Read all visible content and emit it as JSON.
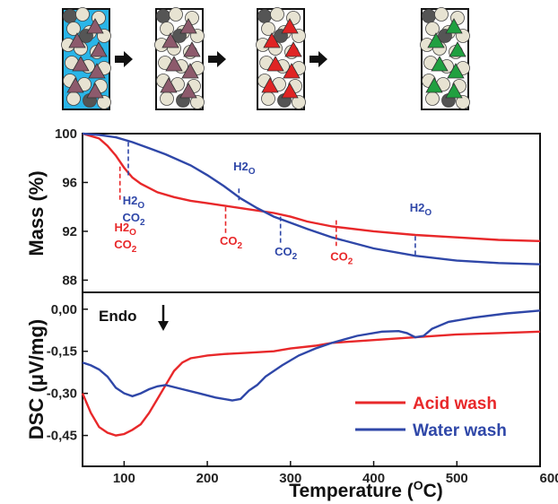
{
  "colors": {
    "acid": "#e8282a",
    "water": "#2f47a8",
    "fluid": "#29b5e8",
    "sphere": "#e7e3d2",
    "dark_sphere": "#555555",
    "tri_initial": "#8d5a6c",
    "tri_red": "#e02424",
    "tri_green": "#20a040"
  },
  "schematic": {
    "steps": [
      {
        "triangle": "tri_initial",
        "fluid": true
      },
      {
        "triangle": "tri_initial",
        "fluid": false
      },
      {
        "triangle": "tri_red",
        "fluid": false
      },
      {
        "triangle": "tri_green",
        "fluid": false
      }
    ],
    "arrow_icon": "right-arrow-icon"
  },
  "chart_data": [
    {
      "type": "line",
      "name": "mass",
      "ylabel": "Mass (%)",
      "xlim": [
        50,
        600
      ],
      "ylim": [
        87,
        100
      ],
      "yticks": [
        "100",
        "96",
        "92",
        "88"
      ],
      "ytick_values": [
        100,
        96,
        92,
        88
      ],
      "series": [
        {
          "key": "acid",
          "name": "Acid wash",
          "x": [
            50,
            70,
            80,
            90,
            100,
            110,
            120,
            140,
            160,
            180,
            200,
            220,
            250,
            280,
            300,
            320,
            350,
            400,
            450,
            500,
            550,
            600
          ],
          "y": [
            100,
            99.6,
            99.0,
            98.2,
            97.2,
            96.4,
            95.9,
            95.2,
            94.8,
            94.5,
            94.3,
            94.1,
            93.8,
            93.5,
            93.2,
            92.8,
            92.4,
            92.0,
            91.7,
            91.5,
            91.3,
            91.2
          ]
        },
        {
          "key": "water",
          "name": "Water wash",
          "x": [
            50,
            70,
            90,
            110,
            130,
            150,
            180,
            200,
            220,
            240,
            260,
            280,
            300,
            320,
            350,
            400,
            450,
            500,
            550,
            600
          ],
          "y": [
            100,
            99.9,
            99.7,
            99.3,
            98.8,
            98.3,
            97.4,
            96.6,
            95.7,
            94.7,
            93.9,
            93.2,
            92.7,
            92.2,
            91.5,
            90.6,
            90.0,
            89.6,
            89.4,
            89.3
          ]
        }
      ],
      "annotations": [
        {
          "series": "acid",
          "x": 95,
          "y1": 97.3,
          "y2": 94.5,
          "lines": [
            "H2O",
            "CO2"
          ],
          "label_y": [
            92,
            90.6
          ]
        },
        {
          "series": "water",
          "x": 105,
          "y1": 99.3,
          "y2": 96.4,
          "lines": [
            "H2O",
            "CO2"
          ],
          "label_y": [
            94.2,
            92.8
          ]
        },
        {
          "series": "acid",
          "x": 222,
          "y1": 94.0,
          "y2": 91.8,
          "lines": [
            "CO2"
          ],
          "label_y": [
            90.9
          ]
        },
        {
          "series": "water",
          "x": 238,
          "y1": 95.5,
          "y2": 94.4,
          "lines": [
            "H2O"
          ],
          "label_y": [
            97.0
          ]
        },
        {
          "series": "water",
          "x": 288,
          "y1": 93.2,
          "y2": 91.0,
          "lines": [
            "CO2"
          ],
          "label_y": [
            90.0
          ]
        },
        {
          "series": "acid",
          "x": 355,
          "y1": 92.9,
          "y2": 90.8,
          "lines": [
            "CO2"
          ],
          "label_y": [
            89.6
          ]
        },
        {
          "series": "water",
          "x": 450,
          "y1": 91.6,
          "y2": 89.9,
          "lines": [
            "H2O"
          ],
          "label_y": [
            93.6
          ]
        }
      ]
    },
    {
      "type": "line",
      "name": "dsc",
      "ylabel": "DSC (μV/mg)",
      "xlabel": "Temperature (oC)",
      "xlim": [
        50,
        600
      ],
      "ylim": [
        -0.56,
        0.06
      ],
      "xticks": [
        "100",
        "200",
        "300",
        "400",
        "500",
        "600"
      ],
      "xtick_values": [
        100,
        200,
        300,
        400,
        500,
        600
      ],
      "yticks": [
        "0,00",
        "-0,15",
        "-0,30",
        "-0,45"
      ],
      "ytick_values": [
        0.0,
        -0.15,
        -0.3,
        -0.45
      ],
      "endo_label": "Endo",
      "series": [
        {
          "key": "acid",
          "name": "Acid wash",
          "x": [
            50,
            60,
            70,
            80,
            90,
            100,
            110,
            120,
            130,
            140,
            150,
            160,
            170,
            180,
            190,
            200,
            220,
            250,
            280,
            300,
            330,
            350,
            400,
            450,
            500,
            550,
            600
          ],
          "y": [
            -0.3,
            -0.37,
            -0.42,
            -0.44,
            -0.45,
            -0.445,
            -0.43,
            -0.41,
            -0.37,
            -0.32,
            -0.27,
            -0.22,
            -0.19,
            -0.175,
            -0.17,
            -0.165,
            -0.16,
            -0.155,
            -0.15,
            -0.14,
            -0.13,
            -0.12,
            -0.11,
            -0.1,
            -0.09,
            -0.085,
            -0.08
          ]
        },
        {
          "key": "water",
          "name": "Water wash",
          "x": [
            50,
            60,
            70,
            80,
            90,
            100,
            110,
            120,
            130,
            140,
            150,
            170,
            190,
            210,
            230,
            240,
            250,
            260,
            270,
            290,
            310,
            330,
            350,
            380,
            410,
            430,
            440,
            450,
            460,
            470,
            490,
            520,
            560,
            600
          ],
          "y": [
            -0.19,
            -0.2,
            -0.215,
            -0.24,
            -0.28,
            -0.3,
            -0.31,
            -0.3,
            -0.285,
            -0.275,
            -0.27,
            -0.285,
            -0.3,
            -0.315,
            -0.325,
            -0.32,
            -0.29,
            -0.27,
            -0.24,
            -0.2,
            -0.165,
            -0.14,
            -0.12,
            -0.095,
            -0.08,
            -0.078,
            -0.085,
            -0.1,
            -0.095,
            -0.07,
            -0.045,
            -0.03,
            -0.015,
            -0.005
          ]
        }
      ]
    }
  ]
}
